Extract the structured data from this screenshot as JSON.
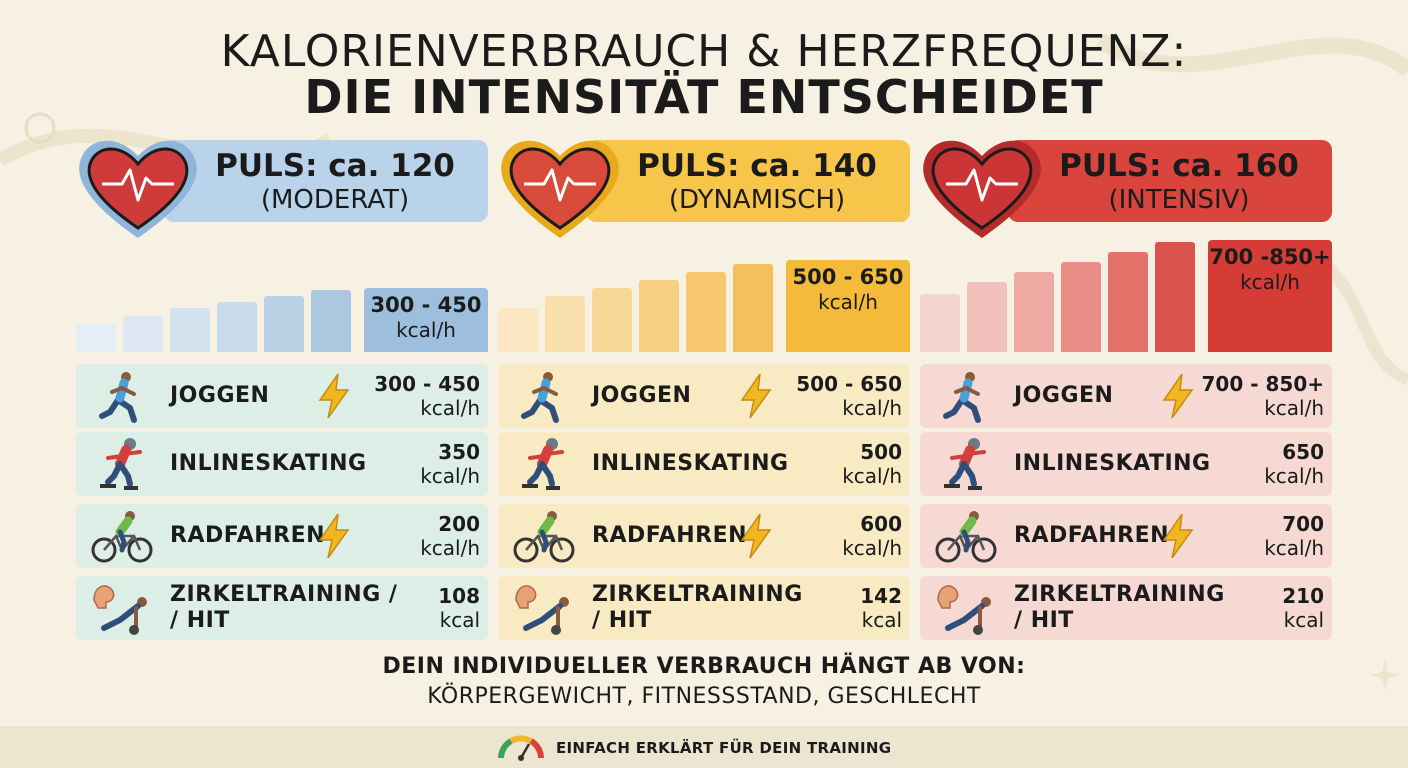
{
  "title": {
    "line1": "KALORIENVERBRAUCH & HERZFREQUENZ:",
    "line2": "DIE INTENSITÄT ENTSCHEIDET"
  },
  "columns": [
    {
      "puls": "PULS: ca. 120",
      "level": "(MODERAT)",
      "kcal_range": "300 - 450",
      "kcal_unit": "kcal/h",
      "colors": {
        "header": "#b9d4ea",
        "heart": "#cf3b3b",
        "heart_outline": "#8fb6d8",
        "row": "#ddeee6",
        "kcal_box": "#9dbfdd"
      },
      "bar_colors": [
        "#e6eef5",
        "#dde8f2",
        "#d3e2ef",
        "#c8dbeb",
        "#bbd2e6",
        "#acc8e1"
      ],
      "activities": [
        {
          "name": "JOGGEN",
          "value": "300 - 450",
          "unit": "kcal/h",
          "icon": "runner-icon",
          "bolt": true
        },
        {
          "name": "INLINESKATING",
          "value": "350",
          "unit": "kcal/h",
          "icon": "inline-skater-icon",
          "bolt": false
        },
        {
          "name": "RADFAHREN",
          "value": "200",
          "unit": "kcal/h",
          "icon": "cyclist-icon",
          "bolt": true
        },
        {
          "name_line1": "ZIRKELTRAINING /",
          "name_line2": "/ HIT",
          "value": "108",
          "unit": "kcal",
          "icon": "circuit-training-icon",
          "bolt": false
        }
      ]
    },
    {
      "puls": "PULS: ca. 140",
      "level": "(DYNAMISCH)",
      "kcal_range": "500 - 650",
      "kcal_unit": "kcal/h",
      "colors": {
        "header": "#f6c54a",
        "heart": "#d84a3a",
        "heart_outline": "#e8a91d",
        "row": "#f8eac2",
        "kcal_box": "#f3bb39"
      },
      "bar_colors": [
        "#fbe7c2",
        "#f9e0ad",
        "#f8d797",
        "#f7cf82",
        "#f6c76d",
        "#f5c05b"
      ],
      "activities": [
        {
          "name": "JOGGEN",
          "value": "500 - 650",
          "unit": "kcal/h",
          "icon": "runner-icon",
          "bolt": true
        },
        {
          "name": "INLINESKATING",
          "value": "500",
          "unit": "kcal/h",
          "icon": "inline-skater-icon",
          "bolt": false
        },
        {
          "name": "RADFAHREN",
          "value": "600",
          "unit": "kcal/h",
          "icon": "cyclist-icon",
          "bolt": true
        },
        {
          "name_line1": "ZIRKELTRAINING",
          "name_line2": "/ HIT",
          "value": "142",
          "unit": "kcal",
          "icon": "circuit-training-icon",
          "bolt": false
        }
      ]
    },
    {
      "puls": "PULS: ca. 160",
      "level": "(INTENSIV)",
      "kcal_range": "700 -850+",
      "kcal_unit": "kcal/h",
      "colors": {
        "header": "#d9443c",
        "heart": "#cc3535",
        "heart_outline": "#b42b2b",
        "row": "#f6d9d3",
        "kcal_box": "#d53c35"
      },
      "bar_colors": [
        "#f5d3cf",
        "#f2c1bb",
        "#eea9a2",
        "#e98d86",
        "#e37069",
        "#dc534d"
      ],
      "activities": [
        {
          "name": "JOGGEN",
          "value": "700 - 850+",
          "unit": "kcal/h",
          "icon": "runner-icon",
          "bolt": true
        },
        {
          "name": "INLINESKATING",
          "value": "650",
          "unit": "kcal/h",
          "icon": "inline-skater-icon",
          "bolt": false
        },
        {
          "name": "RADFAHREN",
          "value": "700",
          "unit": "kcal/h",
          "icon": "cyclist-icon",
          "bolt": true
        },
        {
          "name_line1": "ZIRKELTRAINING",
          "name_line2": "/ HIT",
          "value": "210",
          "unit": "kcal",
          "icon": "circuit-training-icon",
          "bolt": false
        }
      ]
    }
  ],
  "footer": {
    "line1": "DEIN INDIVIDUELLER VERBRAUCH HÄNGT AB VON:",
    "line2": "KÖRPERGEWICHT, FITNESSSTAND, GESCHLECHT",
    "tagline": "EINFACH ERKLÄRT FÜR DEIN TRAINING"
  },
  "icons": {
    "heart": "heart-pulse-icon",
    "bolt": "lightning-bolt-icon",
    "gauge": "speedometer-icon",
    "sparkle": "sparkle-icon"
  }
}
